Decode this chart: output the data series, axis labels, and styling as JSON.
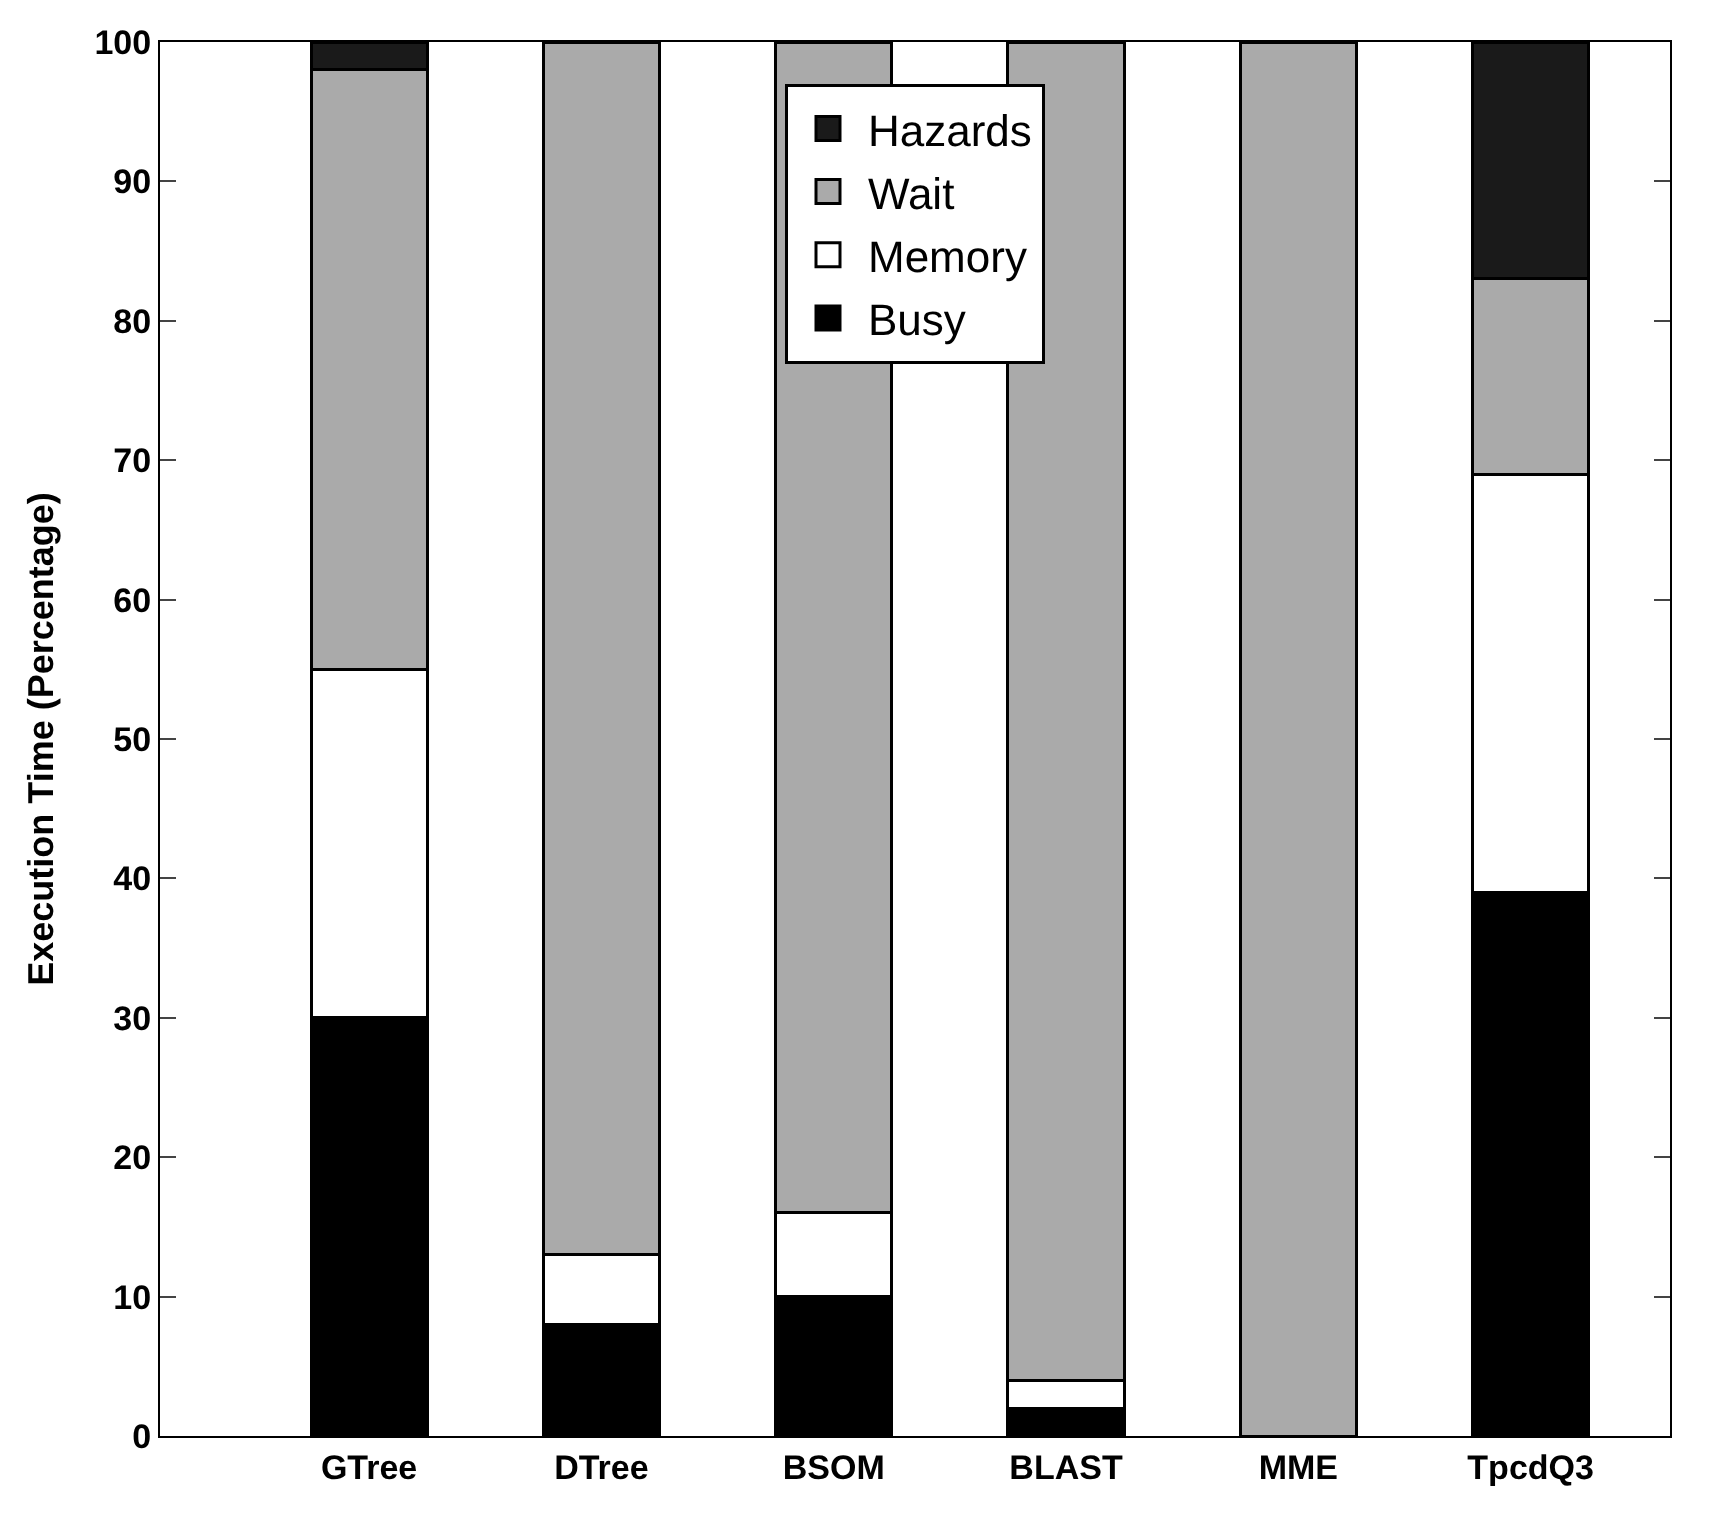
{
  "chart_data": {
    "type": "bar",
    "stacked": true,
    "ylabel": "Execution Time (Percentage)",
    "categories": [
      "GTree",
      "DTree",
      "BSOM",
      "BLAST",
      "MME",
      "TpcdQ3"
    ],
    "series": [
      {
        "name": "Busy",
        "color": "#000000",
        "values": [
          30,
          8,
          10,
          2,
          0,
          39
        ]
      },
      {
        "name": "Memory",
        "color": "#ffffff",
        "values": [
          25,
          5,
          6,
          2,
          0,
          30
        ]
      },
      {
        "name": "Wait",
        "color": "#aaaaaa",
        "values": [
          43,
          87,
          84,
          96,
          100,
          14
        ]
      },
      {
        "name": "Hazards",
        "color": "#1a1a1a",
        "values": [
          2,
          0,
          0,
          0,
          0,
          17
        ]
      }
    ],
    "ylim": [
      0,
      100
    ],
    "yticks": [
      0,
      10,
      20,
      30,
      40,
      50,
      60,
      70,
      80,
      90,
      100
    ],
    "legend": "top"
  }
}
